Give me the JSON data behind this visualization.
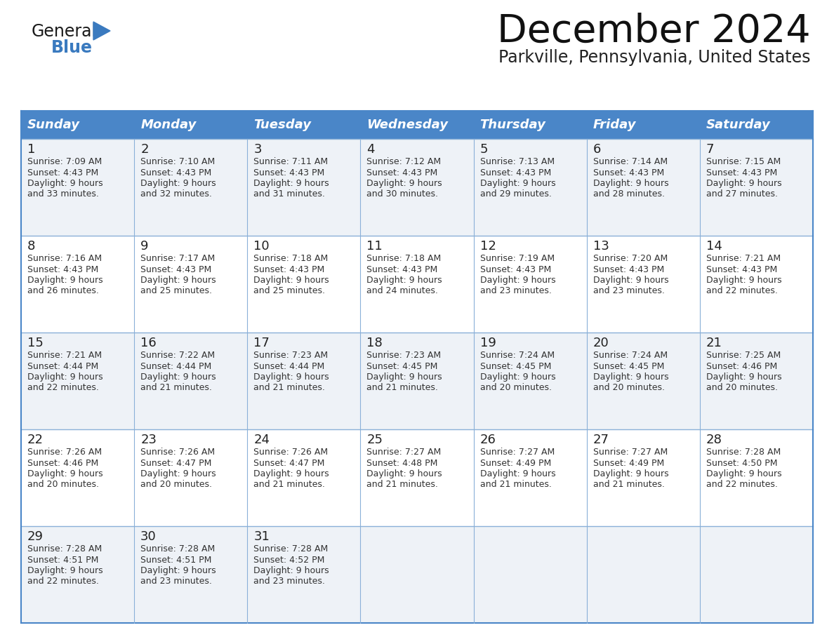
{
  "title": "December 2024",
  "subtitle": "Parkville, Pennsylvania, United States",
  "days_of_week": [
    "Sunday",
    "Monday",
    "Tuesday",
    "Wednesday",
    "Thursday",
    "Friday",
    "Saturday"
  ],
  "header_bg": "#4a86c8",
  "header_text": "#ffffff",
  "row_bg_light": "#eef2f7",
  "row_bg_white": "#ffffff",
  "border_color": "#4a86c8",
  "sep_line_color": "#8ab0d8",
  "day_num_color": "#222222",
  "text_color": "#333333",
  "logo_general_color": "#1a1a1a",
  "logo_blue_color": "#3a7abf",
  "logo_triangle_color": "#3a7abf",
  "calendar_data": [
    [
      {
        "day": 1,
        "sunrise": "7:09 AM",
        "sunset": "4:43 PM",
        "daylight_line1": "Daylight: 9 hours",
        "daylight_line2": "and 33 minutes."
      },
      {
        "day": 2,
        "sunrise": "7:10 AM",
        "sunset": "4:43 PM",
        "daylight_line1": "Daylight: 9 hours",
        "daylight_line2": "and 32 minutes."
      },
      {
        "day": 3,
        "sunrise": "7:11 AM",
        "sunset": "4:43 PM",
        "daylight_line1": "Daylight: 9 hours",
        "daylight_line2": "and 31 minutes."
      },
      {
        "day": 4,
        "sunrise": "7:12 AM",
        "sunset": "4:43 PM",
        "daylight_line1": "Daylight: 9 hours",
        "daylight_line2": "and 30 minutes."
      },
      {
        "day": 5,
        "sunrise": "7:13 AM",
        "sunset": "4:43 PM",
        "daylight_line1": "Daylight: 9 hours",
        "daylight_line2": "and 29 minutes."
      },
      {
        "day": 6,
        "sunrise": "7:14 AM",
        "sunset": "4:43 PM",
        "daylight_line1": "Daylight: 9 hours",
        "daylight_line2": "and 28 minutes."
      },
      {
        "day": 7,
        "sunrise": "7:15 AM",
        "sunset": "4:43 PM",
        "daylight_line1": "Daylight: 9 hours",
        "daylight_line2": "and 27 minutes."
      }
    ],
    [
      {
        "day": 8,
        "sunrise": "7:16 AM",
        "sunset": "4:43 PM",
        "daylight_line1": "Daylight: 9 hours",
        "daylight_line2": "and 26 minutes."
      },
      {
        "day": 9,
        "sunrise": "7:17 AM",
        "sunset": "4:43 PM",
        "daylight_line1": "Daylight: 9 hours",
        "daylight_line2": "and 25 minutes."
      },
      {
        "day": 10,
        "sunrise": "7:18 AM",
        "sunset": "4:43 PM",
        "daylight_line1": "Daylight: 9 hours",
        "daylight_line2": "and 25 minutes."
      },
      {
        "day": 11,
        "sunrise": "7:18 AM",
        "sunset": "4:43 PM",
        "daylight_line1": "Daylight: 9 hours",
        "daylight_line2": "and 24 minutes."
      },
      {
        "day": 12,
        "sunrise": "7:19 AM",
        "sunset": "4:43 PM",
        "daylight_line1": "Daylight: 9 hours",
        "daylight_line2": "and 23 minutes."
      },
      {
        "day": 13,
        "sunrise": "7:20 AM",
        "sunset": "4:43 PM",
        "daylight_line1": "Daylight: 9 hours",
        "daylight_line2": "and 23 minutes."
      },
      {
        "day": 14,
        "sunrise": "7:21 AM",
        "sunset": "4:43 PM",
        "daylight_line1": "Daylight: 9 hours",
        "daylight_line2": "and 22 minutes."
      }
    ],
    [
      {
        "day": 15,
        "sunrise": "7:21 AM",
        "sunset": "4:44 PM",
        "daylight_line1": "Daylight: 9 hours",
        "daylight_line2": "and 22 minutes."
      },
      {
        "day": 16,
        "sunrise": "7:22 AM",
        "sunset": "4:44 PM",
        "daylight_line1": "Daylight: 9 hours",
        "daylight_line2": "and 21 minutes."
      },
      {
        "day": 17,
        "sunrise": "7:23 AM",
        "sunset": "4:44 PM",
        "daylight_line1": "Daylight: 9 hours",
        "daylight_line2": "and 21 minutes."
      },
      {
        "day": 18,
        "sunrise": "7:23 AM",
        "sunset": "4:45 PM",
        "daylight_line1": "Daylight: 9 hours",
        "daylight_line2": "and 21 minutes."
      },
      {
        "day": 19,
        "sunrise": "7:24 AM",
        "sunset": "4:45 PM",
        "daylight_line1": "Daylight: 9 hours",
        "daylight_line2": "and 20 minutes."
      },
      {
        "day": 20,
        "sunrise": "7:24 AM",
        "sunset": "4:45 PM",
        "daylight_line1": "Daylight: 9 hours",
        "daylight_line2": "and 20 minutes."
      },
      {
        "day": 21,
        "sunrise": "7:25 AM",
        "sunset": "4:46 PM",
        "daylight_line1": "Daylight: 9 hours",
        "daylight_line2": "and 20 minutes."
      }
    ],
    [
      {
        "day": 22,
        "sunrise": "7:26 AM",
        "sunset": "4:46 PM",
        "daylight_line1": "Daylight: 9 hours",
        "daylight_line2": "and 20 minutes."
      },
      {
        "day": 23,
        "sunrise": "7:26 AM",
        "sunset": "4:47 PM",
        "daylight_line1": "Daylight: 9 hours",
        "daylight_line2": "and 20 minutes."
      },
      {
        "day": 24,
        "sunrise": "7:26 AM",
        "sunset": "4:47 PM",
        "daylight_line1": "Daylight: 9 hours",
        "daylight_line2": "and 21 minutes."
      },
      {
        "day": 25,
        "sunrise": "7:27 AM",
        "sunset": "4:48 PM",
        "daylight_line1": "Daylight: 9 hours",
        "daylight_line2": "and 21 minutes."
      },
      {
        "day": 26,
        "sunrise": "7:27 AM",
        "sunset": "4:49 PM",
        "daylight_line1": "Daylight: 9 hours",
        "daylight_line2": "and 21 minutes."
      },
      {
        "day": 27,
        "sunrise": "7:27 AM",
        "sunset": "4:49 PM",
        "daylight_line1": "Daylight: 9 hours",
        "daylight_line2": "and 21 minutes."
      },
      {
        "day": 28,
        "sunrise": "7:28 AM",
        "sunset": "4:50 PM",
        "daylight_line1": "Daylight: 9 hours",
        "daylight_line2": "and 22 minutes."
      }
    ],
    [
      {
        "day": 29,
        "sunrise": "7:28 AM",
        "sunset": "4:51 PM",
        "daylight_line1": "Daylight: 9 hours",
        "daylight_line2": "and 22 minutes."
      },
      {
        "day": 30,
        "sunrise": "7:28 AM",
        "sunset": "4:51 PM",
        "daylight_line1": "Daylight: 9 hours",
        "daylight_line2": "and 23 minutes."
      },
      {
        "day": 31,
        "sunrise": "7:28 AM",
        "sunset": "4:52 PM",
        "daylight_line1": "Daylight: 9 hours",
        "daylight_line2": "and 23 minutes."
      },
      null,
      null,
      null,
      null
    ]
  ]
}
